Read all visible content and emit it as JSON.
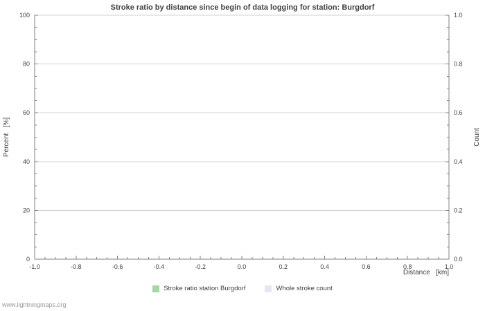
{
  "watermark": "www.lightningmaps.org",
  "colors": {
    "grid": "#d0d0d0",
    "axis": "#808080",
    "text": "#404040",
    "watermark": "#999999"
  },
  "chart_data": {
    "type": "line",
    "title": "Stroke ratio by distance since begin of data logging for station: Burgdorf",
    "xlabel": "Distance   [km]",
    "ylabel_left": "Percent   [%]",
    "ylabel_right": "Count",
    "xlim": [
      -1.0,
      1.0
    ],
    "ylim_left": [
      0,
      100
    ],
    "ylim_right": [
      0.0,
      1.0
    ],
    "grid": true,
    "legend_position": "bottom",
    "minor_per_major": 4,
    "x_ticks": [
      {
        "v": -1.0,
        "label": "-1.0"
      },
      {
        "v": -0.8,
        "label": "-0.8"
      },
      {
        "v": -0.6,
        "label": "-0.6"
      },
      {
        "v": -0.4,
        "label": "-0.4"
      },
      {
        "v": -0.2,
        "label": "-0.2"
      },
      {
        "v": 0.0,
        "label": "0.0"
      },
      {
        "v": 0.2,
        "label": "0.2"
      },
      {
        "v": 0.4,
        "label": "0.4"
      },
      {
        "v": 0.6,
        "label": "0.6"
      },
      {
        "v": 0.8,
        "label": "0.8"
      },
      {
        "v": 1.0,
        "label": "1.0"
      }
    ],
    "y_left_ticks": [
      {
        "v": 0,
        "label": "0"
      },
      {
        "v": 20,
        "label": "20"
      },
      {
        "v": 40,
        "label": "40"
      },
      {
        "v": 60,
        "label": "60"
      },
      {
        "v": 80,
        "label": "80"
      },
      {
        "v": 100,
        "label": "100"
      }
    ],
    "y_right_ticks": [
      {
        "v": 0.0,
        "label": "0.0"
      },
      {
        "v": 0.2,
        "label": "0.2"
      },
      {
        "v": 0.4,
        "label": "0.4"
      },
      {
        "v": 0.6,
        "label": "0.6"
      },
      {
        "v": 0.8,
        "label": "0.8"
      },
      {
        "v": 1.0,
        "label": "1.0"
      }
    ],
    "series": [
      {
        "name": "Stroke ratio station Burgdorf",
        "color": "#a3d7a3",
        "values": []
      },
      {
        "name": "Whole stroke count",
        "color": "#e6e6f7",
        "values": []
      }
    ]
  }
}
